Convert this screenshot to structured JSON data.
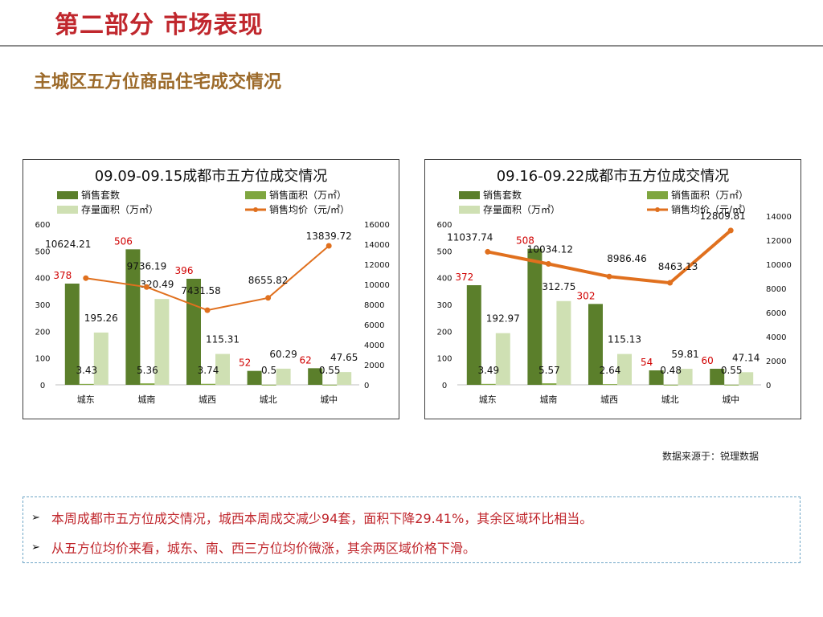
{
  "header": {
    "page_title": "第二部分 市场表现",
    "section_title": "主城区五方位商品住宅成交情况"
  },
  "legend_labels": {
    "units": "销售套数",
    "area": "销售面积（万㎡）",
    "stock": "存量面积（万㎡）",
    "price": "销售均价（元/㎡）"
  },
  "colors": {
    "title_red": "#c0272d",
    "section_brown": "#9c6a2a",
    "units_bar": "#5b7f2b",
    "area_bar": "#7fa640",
    "stock_bar": "#cfe0b3",
    "price_line": "#e0701e",
    "units_label": "#d00000"
  },
  "chart_data": [
    {
      "type": "bar",
      "title": "09.09-09.15成都市五方位成交情况",
      "categories": [
        "城东",
        "城南",
        "城西",
        "城北",
        "城中"
      ],
      "ylim": [
        0,
        600
      ],
      "y_ticks": [
        "0",
        "100",
        "200",
        "300",
        "400",
        "500",
        "600"
      ],
      "y2lim": [
        0,
        16000
      ],
      "y2_ticks": [
        "0",
        "2000",
        "4000",
        "6000",
        "8000",
        "10000",
        "12000",
        "14000",
        "16000"
      ],
      "series": [
        {
          "name": "销售套数",
          "values": [
            378,
            506,
            396,
            52,
            62
          ],
          "labels": [
            "378",
            "506",
            "396",
            "52",
            "62"
          ]
        },
        {
          "name": "销售面积（万㎡）",
          "values": [
            3.43,
            5.36,
            3.74,
            0.5,
            0.55
          ],
          "labels": [
            "3.43",
            "5.36",
            "3.74",
            "0.5",
            "0.55"
          ]
        },
        {
          "name": "存量面积（万㎡）",
          "values": [
            195.26,
            320.49,
            115.31,
            60.29,
            47.65
          ],
          "labels": [
            "195.26",
            "320.49",
            "115.31",
            "60.29",
            "47.65"
          ]
        },
        {
          "name": "销售均价（元/㎡）",
          "type": "line",
          "axis": "right",
          "values": [
            10624.21,
            9736.19,
            7431.58,
            8655.82,
            13839.72
          ],
          "labels": [
            "10624.21",
            "9736.19",
            "7431.58",
            "8655.82",
            "13839.72"
          ]
        }
      ]
    },
    {
      "type": "bar",
      "title": "09.16-09.22成都市五方位成交情况",
      "categories": [
        "城东",
        "城南",
        "城西",
        "城北",
        "城中"
      ],
      "ylim": [
        0,
        600
      ],
      "y_ticks": [
        "0",
        "100",
        "200",
        "300",
        "400",
        "500",
        "600"
      ],
      "y2lim": [
        0,
        14000
      ],
      "y2_ticks": [
        "0",
        "2000",
        "4000",
        "6000",
        "8000",
        "10000",
        "12000",
        "14000"
      ],
      "series": [
        {
          "name": "销售套数",
          "values": [
            372,
            508,
            302,
            54,
            60
          ],
          "labels": [
            "372",
            "508",
            "302",
            "54",
            "60"
          ]
        },
        {
          "name": "销售面积（万㎡）",
          "values": [
            3.49,
            5.57,
            2.64,
            0.48,
            0.55
          ],
          "labels": [
            "3.49",
            "5.57",
            "2.64",
            "0.48",
            "0.55"
          ]
        },
        {
          "name": "存量面积（万㎡）",
          "values": [
            192.97,
            312.75,
            115.13,
            59.81,
            47.14
          ],
          "labels": [
            "192.97",
            "312.75",
            "115.13",
            "59.81",
            "47.14"
          ]
        },
        {
          "name": "销售均价（元/㎡）",
          "type": "line",
          "axis": "right",
          "values": [
            11037.74,
            10034.12,
            8986.46,
            8463.13,
            12809.81
          ],
          "labels": [
            "11037.74",
            "10034.12",
            "8986.46",
            "8463.13",
            "12809.81"
          ]
        }
      ]
    }
  ],
  "source_note": "数据来源于：锐理数据",
  "notes": [
    {
      "marker": "➢",
      "text": "本周成都市五方位成交情况，城西本周成交减少94套，面积下降29.41%，其余区域环比相当。"
    },
    {
      "marker": "➢",
      "text": "从五方位均价来看，城东、南、西三方位均价微涨，其余两区域价格下滑。"
    }
  ]
}
